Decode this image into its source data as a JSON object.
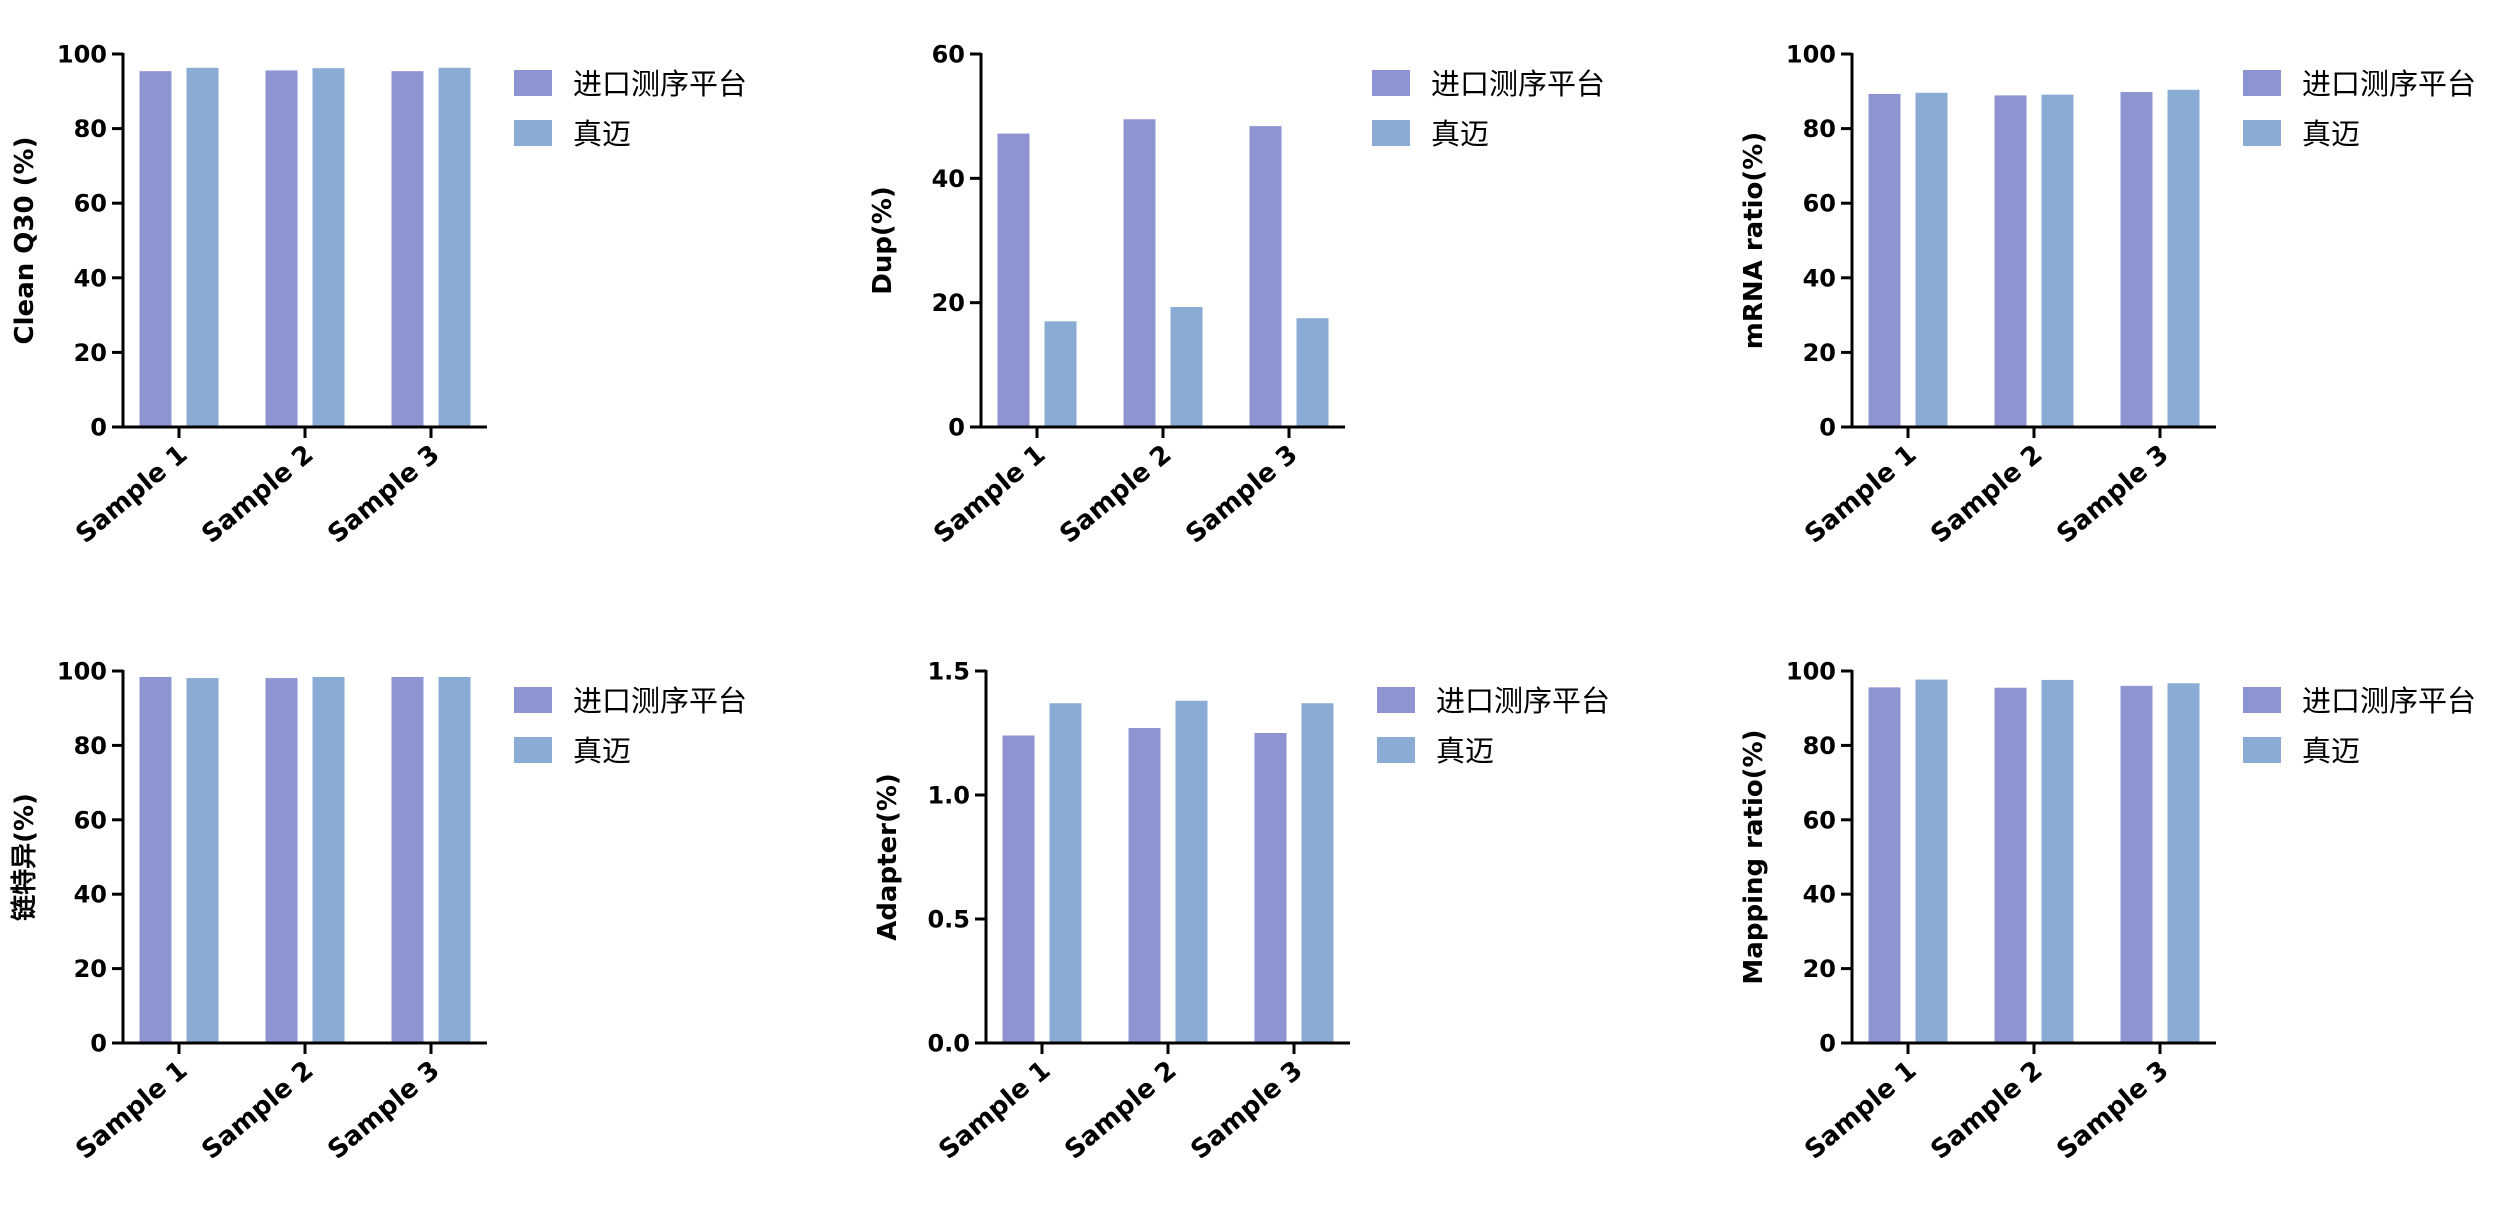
{
  "colors": {
    "series_a": "#8E93D1",
    "series_b": "#8AABD4",
    "axis": "#000000"
  },
  "chart_data": [
    {
      "type": "bar",
      "categories": [
        "Sample 1",
        "Sample 2",
        "Sample 3"
      ],
      "series": [
        {
          "name": "进口测序平台",
          "values": [
            95.4,
            95.6,
            95.4
          ]
        },
        {
          "name": "真迈",
          "values": [
            96.3,
            96.2,
            96.3
          ]
        }
      ],
      "ylabel": "Clean Q30 (%)",
      "ylim": [
        0,
        100
      ],
      "yticks": [
        "0",
        "20",
        "40",
        "60",
        "80",
        "100"
      ],
      "legend": "right"
    },
    {
      "type": "bar",
      "categories": [
        "Sample 1",
        "Sample 2",
        "Sample 3"
      ],
      "series": [
        {
          "name": "进口测序平台",
          "values": [
            47.2,
            49.5,
            48.4
          ]
        },
        {
          "name": "真迈",
          "values": [
            17.0,
            19.3,
            17.5
          ]
        }
      ],
      "ylabel": "Dup(%)",
      "ylim": [
        0,
        60
      ],
      "yticks": [
        "0",
        "20",
        "40",
        "60"
      ],
      "legend": "right"
    },
    {
      "type": "bar",
      "categories": [
        "Sample 1",
        "Sample 2",
        "Sample 3"
      ],
      "series": [
        {
          "name": "进口测序平台",
          "values": [
            89.3,
            88.9,
            89.8
          ]
        },
        {
          "name": "真迈",
          "values": [
            89.6,
            89.1,
            90.4
          ]
        }
      ],
      "ylabel": "mRNA ratio(%)",
      "ylim": [
        0,
        100
      ],
      "yticks": [
        "0",
        "20",
        "40",
        "60",
        "80",
        "100"
      ],
      "legend": "right"
    },
    {
      "type": "bar",
      "categories": [
        "Sample 1",
        "Sample 2",
        "Sample 3"
      ],
      "series": [
        {
          "name": "进口测序平台",
          "values": [
            98.4,
            98.1,
            98.4
          ]
        },
        {
          "name": "真迈",
          "values": [
            98.1,
            98.4,
            98.4
          ]
        }
      ],
      "ylabel": "链特异(%)",
      "ylim": [
        0,
        100
      ],
      "yticks": [
        "0",
        "20",
        "40",
        "60",
        "80",
        "100"
      ],
      "legend": "right"
    },
    {
      "type": "bar",
      "categories": [
        "Sample 1",
        "Sample 2",
        "Sample 3"
      ],
      "series": [
        {
          "name": "进口测序平台",
          "values": [
            1.24,
            1.27,
            1.25
          ]
        },
        {
          "name": "真迈",
          "values": [
            1.37,
            1.38,
            1.37
          ]
        }
      ],
      "ylabel": "Adapter(%)",
      "ylim": [
        0,
        1.5
      ],
      "yticks": [
        "0.0",
        "0.5",
        "1.0",
        "1.5"
      ],
      "legend": "right"
    },
    {
      "type": "bar",
      "categories": [
        "Sample 1",
        "Sample 2",
        "Sample 3"
      ],
      "series": [
        {
          "name": "进口测序平台",
          "values": [
            95.6,
            95.5,
            96.0
          ]
        },
        {
          "name": "真迈",
          "values": [
            97.7,
            97.6,
            96.7
          ]
        }
      ],
      "ylabel": "Mapping ratio(%)",
      "ylim": [
        0,
        100
      ],
      "yticks": [
        "0",
        "20",
        "40",
        "60",
        "80",
        "100"
      ],
      "legend": "right"
    }
  ]
}
